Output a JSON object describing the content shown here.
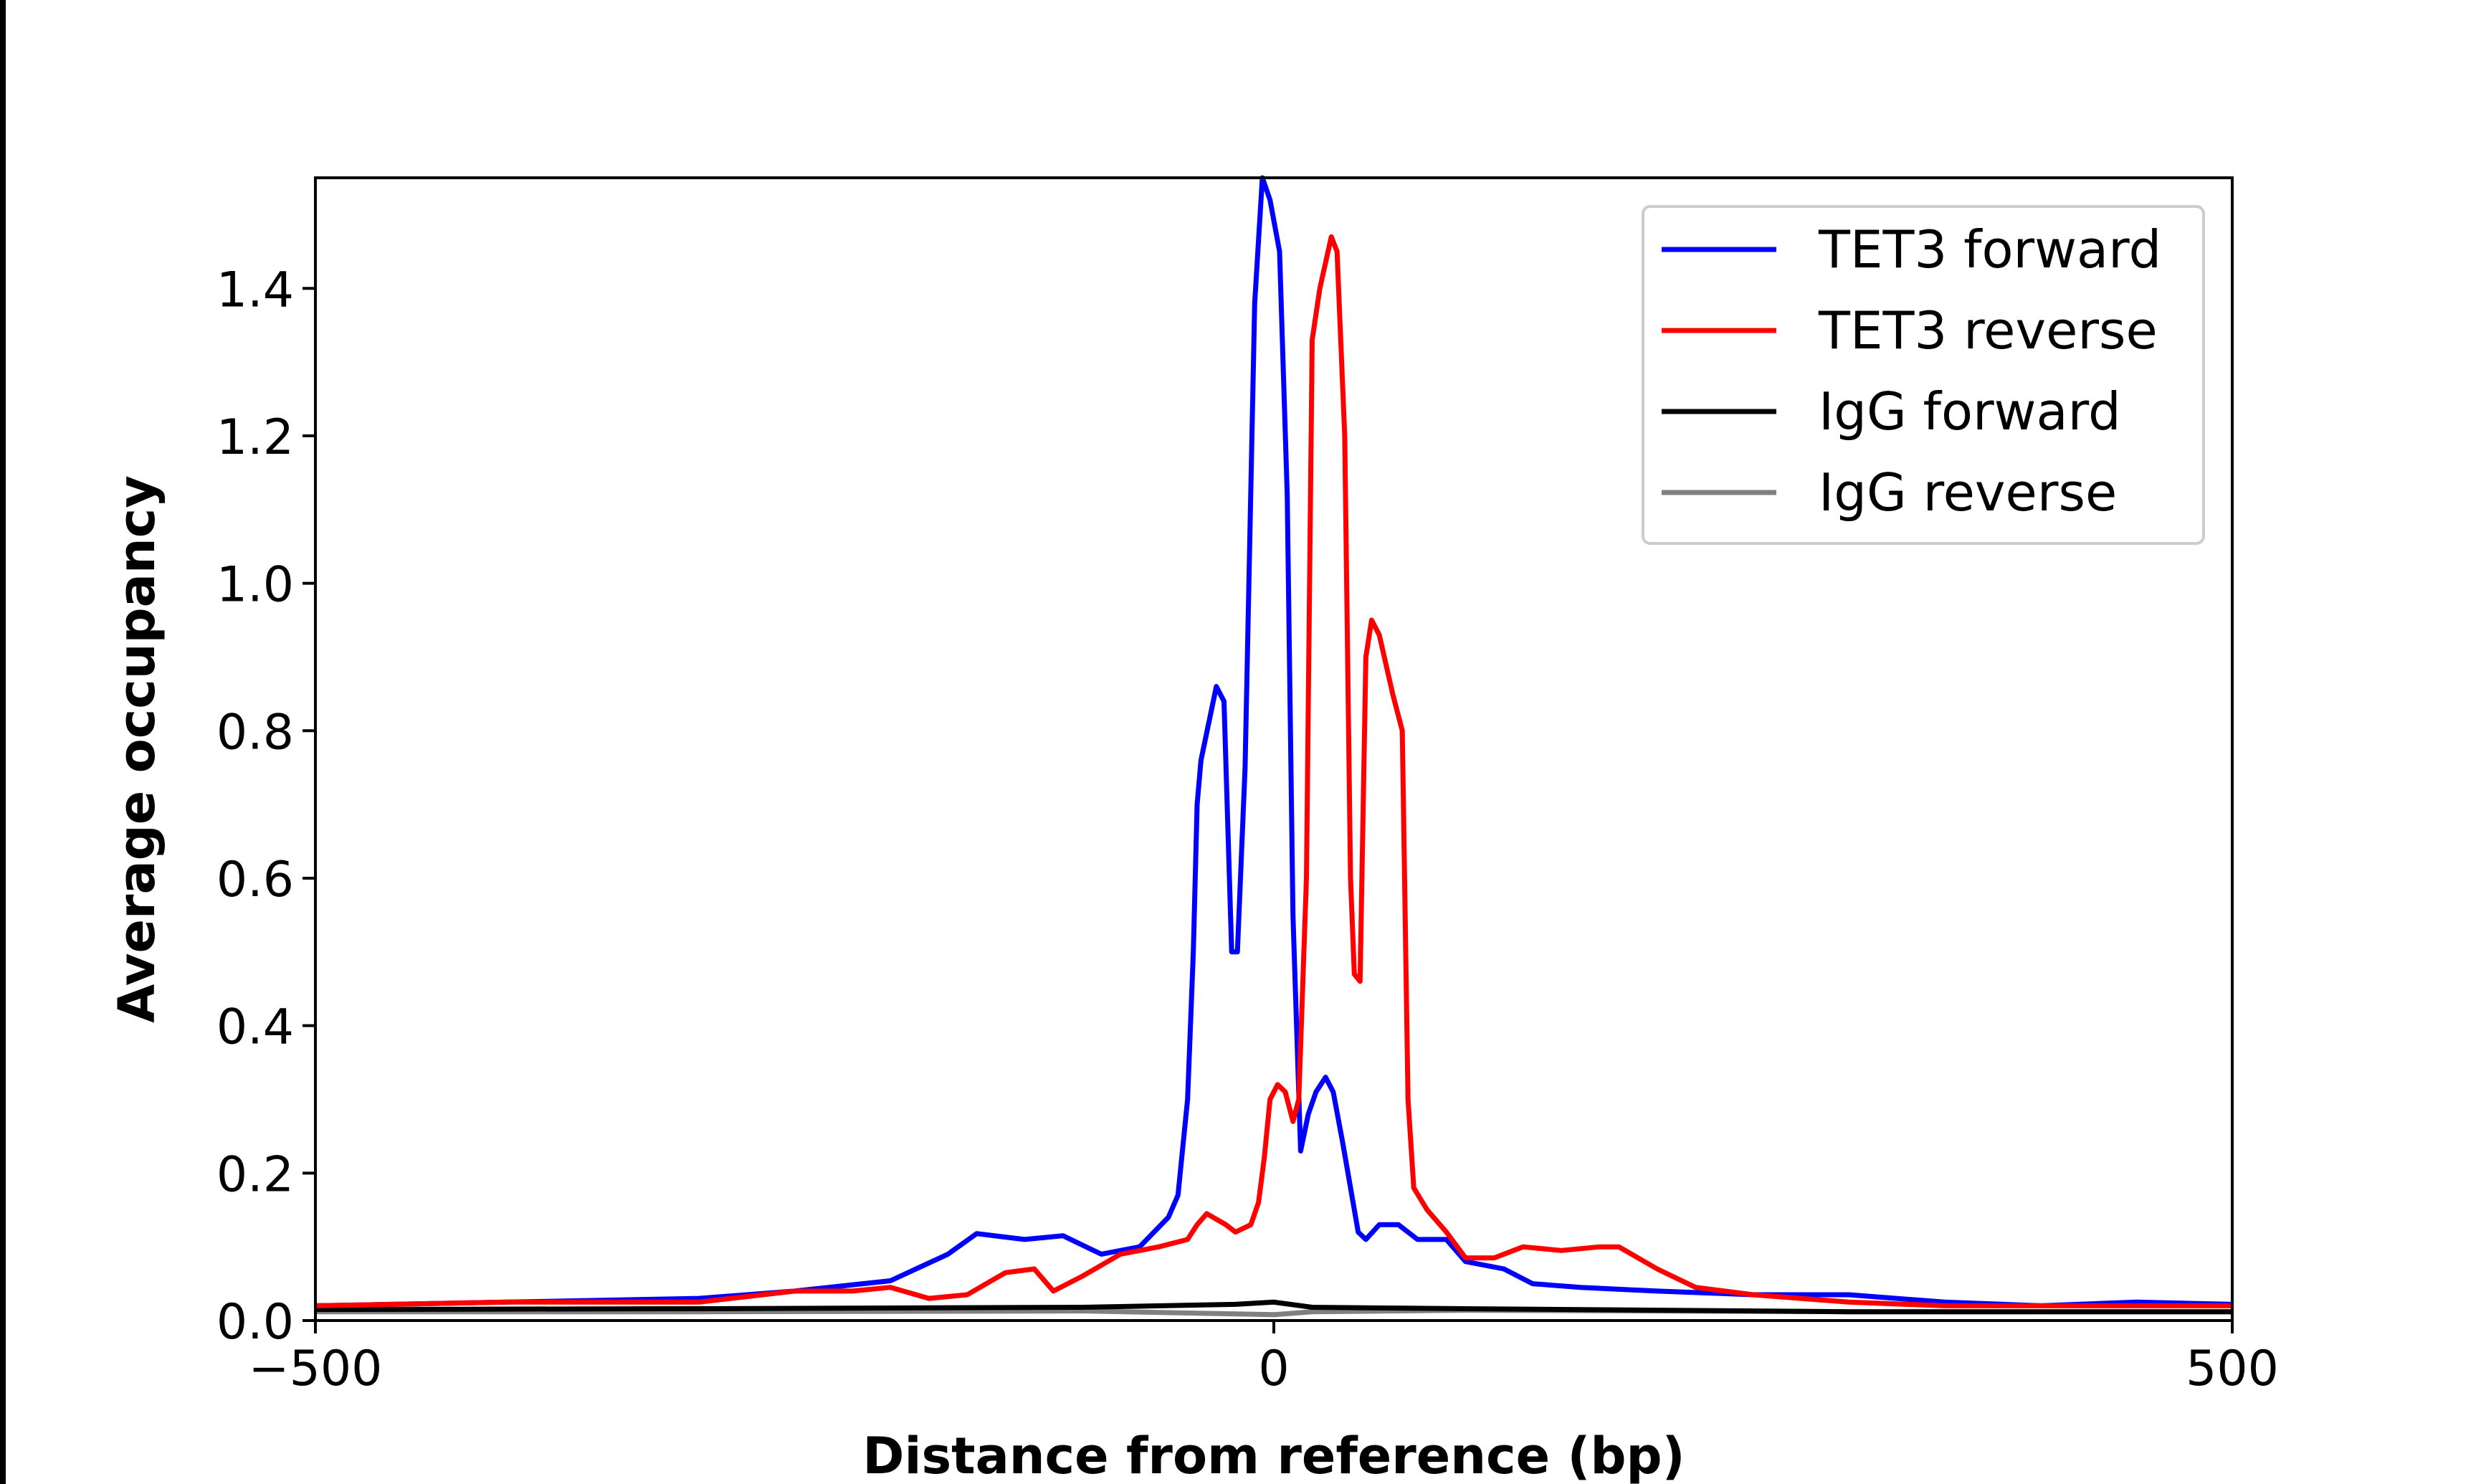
{
  "chart_data": {
    "type": "line",
    "title": "",
    "xlabel": "Distance from reference (bp)",
    "ylabel": "Average occupancy",
    "xlim": [
      -500,
      500
    ],
    "ylim": [
      0,
      1.55
    ],
    "xticks": [
      -500,
      0,
      500
    ],
    "xtick_labels": [
      "−500",
      "0",
      "500"
    ],
    "yticks": [
      0.0,
      0.2,
      0.4,
      0.6,
      0.8,
      1.0,
      1.2,
      1.4
    ],
    "ytick_labels": [
      "0.0",
      "0.2",
      "0.4",
      "0.6",
      "0.8",
      "1.0",
      "1.2",
      "1.4"
    ],
    "grid": false,
    "legend_position": "top-right",
    "series": [
      {
        "name": "TET3 forward",
        "color": "#0000ff",
        "x": [
          -500,
          -400,
          -300,
          -250,
          -200,
          -170,
          -155,
          -130,
          -110,
          -90,
          -70,
          -55,
          -50,
          -45,
          -42,
          -40,
          -38,
          -30,
          -26,
          -22,
          -19,
          -15,
          -10,
          -6,
          -2,
          3,
          7,
          10,
          14,
          18,
          22,
          27,
          31,
          36,
          40,
          44,
          48,
          55,
          65,
          75,
          90,
          100,
          120,
          135,
          160,
          200,
          250,
          300,
          350,
          400,
          450,
          500
        ],
        "y": [
          0.02,
          0.025,
          0.03,
          0.04,
          0.054,
          0.09,
          0.118,
          0.11,
          0.115,
          0.09,
          0.1,
          0.14,
          0.17,
          0.3,
          0.5,
          0.7,
          0.76,
          0.86,
          0.84,
          0.5,
          0.5,
          0.75,
          1.38,
          1.55,
          1.52,
          1.45,
          1.12,
          0.55,
          0.23,
          0.28,
          0.31,
          0.33,
          0.31,
          0.24,
          0.18,
          0.12,
          0.11,
          0.13,
          0.13,
          0.11,
          0.11,
          0.08,
          0.07,
          0.05,
          0.045,
          0.04,
          0.035,
          0.035,
          0.025,
          0.02,
          0.025,
          0.022
        ]
      },
      {
        "name": "TET3 reverse",
        "color": "#ff0000",
        "x": [
          -500,
          -400,
          -300,
          -250,
          -220,
          -200,
          -180,
          -160,
          -140,
          -125,
          -115,
          -100,
          -80,
          -60,
          -45,
          -40,
          -35,
          -25,
          -20,
          -12,
          -8,
          -5,
          -2,
          2,
          6,
          10,
          13,
          17,
          20,
          24,
          30,
          33,
          37,
          40,
          42,
          45,
          48,
          51,
          55,
          62,
          67,
          70,
          73,
          80,
          90,
          100,
          115,
          130,
          150,
          170,
          180,
          200,
          220,
          250,
          300,
          350,
          400,
          450,
          500
        ],
        "y": [
          0.02,
          0.025,
          0.025,
          0.04,
          0.04,
          0.045,
          0.03,
          0.035,
          0.065,
          0.07,
          0.04,
          0.06,
          0.09,
          0.1,
          0.11,
          0.13,
          0.145,
          0.13,
          0.12,
          0.13,
          0.16,
          0.22,
          0.3,
          0.32,
          0.31,
          0.27,
          0.3,
          0.6,
          1.33,
          1.4,
          1.47,
          1.45,
          1.2,
          0.6,
          0.47,
          0.46,
          0.9,
          0.95,
          0.93,
          0.85,
          0.8,
          0.3,
          0.18,
          0.15,
          0.12,
          0.085,
          0.085,
          0.1,
          0.095,
          0.1,
          0.1,
          0.07,
          0.045,
          0.035,
          0.025,
          0.02,
          0.02,
          0.02,
          0.02
        ]
      },
      {
        "name": "IgG forward",
        "color": "#000000",
        "x": [
          -500,
          -300,
          -100,
          -20,
          0,
          20,
          100,
          300,
          500
        ],
        "y": [
          0.015,
          0.016,
          0.018,
          0.022,
          0.025,
          0.018,
          0.016,
          0.012,
          0.012
        ]
      },
      {
        "name": "IgG reverse",
        "color": "#808080",
        "x": [
          -500,
          -300,
          -100,
          0,
          20,
          100,
          300,
          500
        ],
        "y": [
          0.012,
          0.012,
          0.013,
          0.008,
          0.012,
          0.014,
          0.012,
          0.012
        ]
      }
    ]
  }
}
